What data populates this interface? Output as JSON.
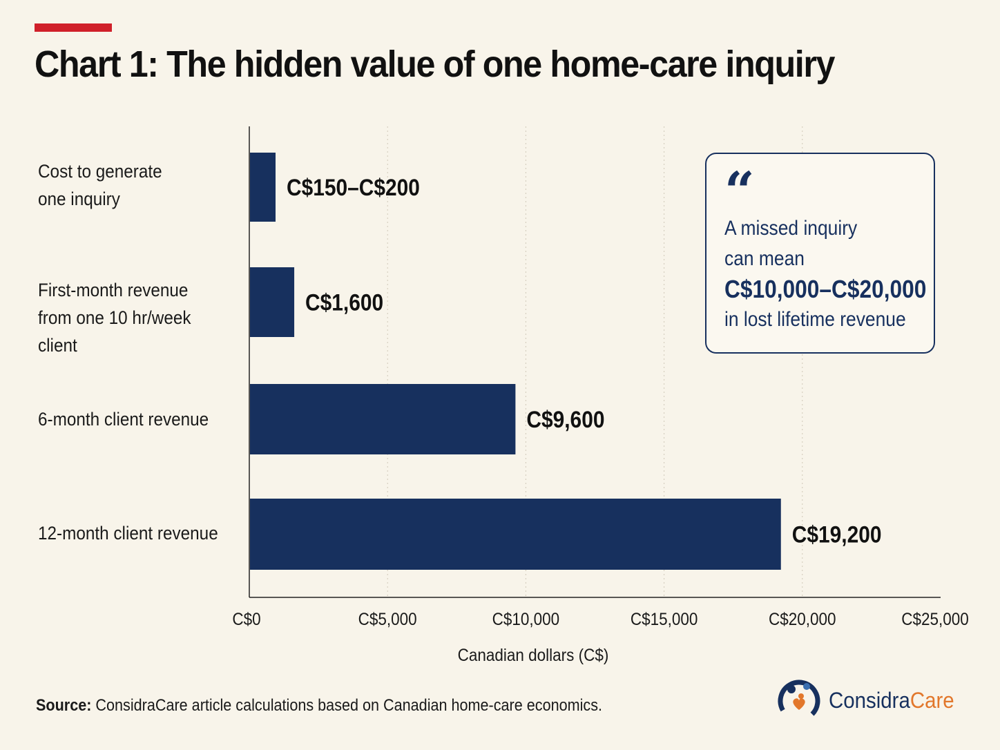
{
  "title": "Chart 1: The hidden value of one home-care inquiry",
  "colors": {
    "accent": "#d0202a",
    "bar": "#17305e",
    "background": "#f8f4ea",
    "logo_orange": "#e2772b"
  },
  "chart_data": {
    "type": "bar",
    "orientation": "horizontal",
    "categories": [
      "Cost to generate\none inquiry",
      "First-month revenue\nfrom one 10 hr/week client",
      "6-month client revenue",
      "12-month client revenue"
    ],
    "values": [
      175,
      1600,
      9600,
      19200
    ],
    "ranges": [
      [
        150,
        200
      ],
      null,
      null,
      null
    ],
    "value_labels": [
      "C$150–C$200",
      "C$1,600",
      "C$9,600",
      "C$19,200"
    ],
    "xlim": [
      0,
      25000
    ],
    "xticks": [
      0,
      5000,
      10000,
      15000,
      20000,
      25000
    ],
    "xtick_labels": [
      "C$0",
      "C$5,000",
      "C$10,000",
      "C$15,000",
      "C$20,000",
      "C$25,000"
    ],
    "xlabel": "Canadian dollars (C$)",
    "ylabel": "",
    "grid": "vertical-dotted"
  },
  "callout": {
    "quote_mark": "“",
    "line1": "A missed inquiry",
    "line2": "can mean",
    "highlight": "C$10,000–C$20,000",
    "line4": "in lost lifetime revenue"
  },
  "source": {
    "label": "Source:",
    "text": " ConsidraCare article calculations based on Canadian home-care economics."
  },
  "logo": {
    "part1": "Considra",
    "part2": "Care",
    "icon": "family-heart-icon"
  }
}
